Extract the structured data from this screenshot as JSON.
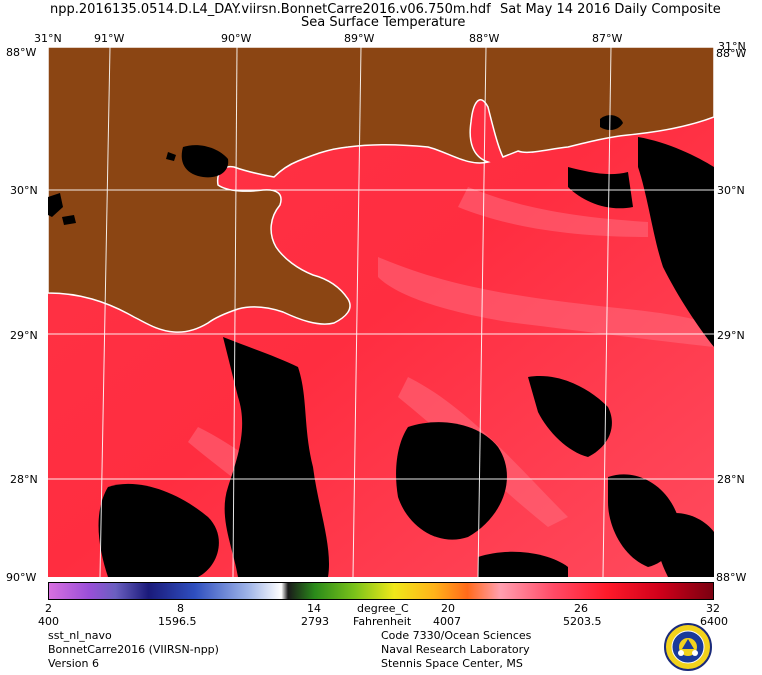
{
  "header": {
    "filename": "npp.2016135.0514.D.L4_DAY.viirsn.BonnetCarre2016.v06.750m.hdf",
    "date": "Sat May 14 2016 Daily Composite",
    "product": "Sea Surface Temperature"
  },
  "map": {
    "lon_labels": [
      "91°W",
      "90°W",
      "89°W",
      "88°W",
      "87°W"
    ],
    "lat_labels": [
      "30°N",
      "29°N",
      "28°N"
    ],
    "corner_top": "31°N",
    "corner_side_top": "88°W",
    "corner_side_bottom": "88°W",
    "corner_bottom": "90°W",
    "colors": {
      "land": "#8b4513",
      "water_warm": "#ff2a3a",
      "water_cool": "#ff5a6e",
      "cloud": "#000000",
      "coast": "#ffffff",
      "grid": "#ffffff"
    }
  },
  "colorbar": {
    "celsius_ticks": [
      "2",
      "8",
      "14",
      "20",
      "26",
      "32"
    ],
    "fahrenheit_ticks": [
      "400",
      "1596.5",
      "2793",
      "4007",
      "5203.5",
      "6400"
    ],
    "unit_c": "degree_C",
    "unit_f": "Fahrenheit"
  },
  "footer": {
    "left": [
      "sst_nl_navo",
      "BonnetCarre2016 (VIIRSN-npp)",
      "Version 6"
    ],
    "right": [
      "Code 7330/Ocean Sciences",
      "Naval Research Laboratory",
      "Stennis Space Center, MS"
    ],
    "seal_icon": "nrl-seal-icon"
  }
}
